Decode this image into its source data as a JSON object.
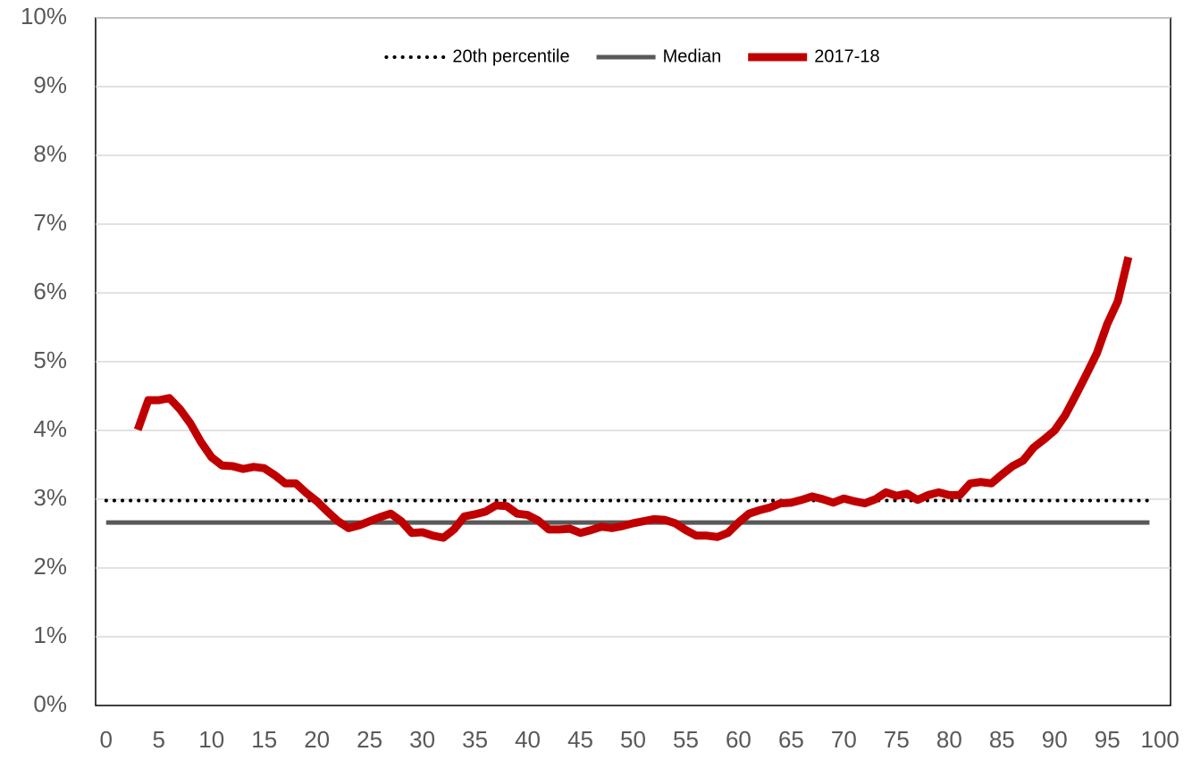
{
  "chart_data": {
    "type": "line",
    "xlim": [
      -1,
      101
    ],
    "xticks": [
      0,
      5,
      10,
      15,
      20,
      25,
      30,
      35,
      40,
      45,
      50,
      55,
      60,
      65,
      70,
      75,
      80,
      85,
      90,
      95,
      100
    ],
    "ylim": [
      0,
      10
    ],
    "yticks": [
      {
        "value": 0,
        "label": "0%"
      },
      {
        "value": 1,
        "label": "1%"
      },
      {
        "value": 2,
        "label": "2%"
      },
      {
        "value": 3,
        "label": "3%"
      },
      {
        "value": 4,
        "label": "4%"
      },
      {
        "value": 5,
        "label": "5%"
      },
      {
        "value": 6,
        "label": "6%"
      },
      {
        "value": 7,
        "label": "7%"
      },
      {
        "value": 8,
        "label": "8%"
      },
      {
        "value": 9,
        "label": "9%"
      },
      {
        "value": 10,
        "label": "10%"
      }
    ],
    "grid": true,
    "legend": "top",
    "series": [
      {
        "name": "20th percentile",
        "color": "#000000",
        "style": "dotted",
        "x": [
          0,
          99
        ],
        "values": [
          2.98,
          2.98
        ]
      },
      {
        "name": "Median",
        "color": "#595959",
        "style": "solid",
        "x": [
          0,
          99
        ],
        "values": [
          2.66,
          2.66
        ]
      },
      {
        "name": "2017-18",
        "color": "#c00000",
        "style": "solid",
        "x": [
          3,
          4,
          5,
          6,
          7,
          8,
          9,
          10,
          11,
          12,
          13,
          14,
          15,
          16,
          17,
          18,
          19,
          20,
          21,
          22,
          23,
          24,
          25,
          26,
          27,
          28,
          29,
          30,
          31,
          32,
          33,
          34,
          35,
          36,
          37,
          38,
          39,
          40,
          41,
          42,
          43,
          44,
          45,
          46,
          47,
          48,
          49,
          50,
          51,
          52,
          53,
          54,
          55,
          56,
          57,
          58,
          59,
          60,
          61,
          62,
          63,
          64,
          65,
          66,
          67,
          68,
          69,
          70,
          71,
          72,
          73,
          74,
          75,
          76,
          77,
          78,
          79,
          80,
          81,
          82,
          83,
          84,
          85,
          86,
          87,
          88,
          89,
          90,
          91,
          92,
          93,
          94,
          95,
          96,
          97
        ],
        "values": [
          4.01,
          4.44,
          4.44,
          4.47,
          4.31,
          4.1,
          3.83,
          3.61,
          3.49,
          3.48,
          3.44,
          3.47,
          3.45,
          3.35,
          3.23,
          3.23,
          3.09,
          2.97,
          2.82,
          2.68,
          2.58,
          2.62,
          2.68,
          2.74,
          2.79,
          2.68,
          2.51,
          2.52,
          2.47,
          2.44,
          2.56,
          2.75,
          2.78,
          2.82,
          2.91,
          2.9,
          2.79,
          2.77,
          2.69,
          2.56,
          2.56,
          2.57,
          2.51,
          2.55,
          2.6,
          2.58,
          2.61,
          2.65,
          2.68,
          2.71,
          2.7,
          2.65,
          2.55,
          2.47,
          2.47,
          2.45,
          2.51,
          2.66,
          2.79,
          2.84,
          2.88,
          2.94,
          2.95,
          2.99,
          3.04,
          3.0,
          2.95,
          3.01,
          2.97,
          2.94,
          3.0,
          3.1,
          3.05,
          3.08,
          2.99,
          3.06,
          3.1,
          3.06,
          3.06,
          3.23,
          3.25,
          3.23,
          3.36,
          3.48,
          3.56,
          3.75,
          3.87,
          4.0,
          4.22,
          4.51,
          4.81,
          5.12,
          5.55,
          5.88,
          6.52
        ]
      }
    ]
  }
}
